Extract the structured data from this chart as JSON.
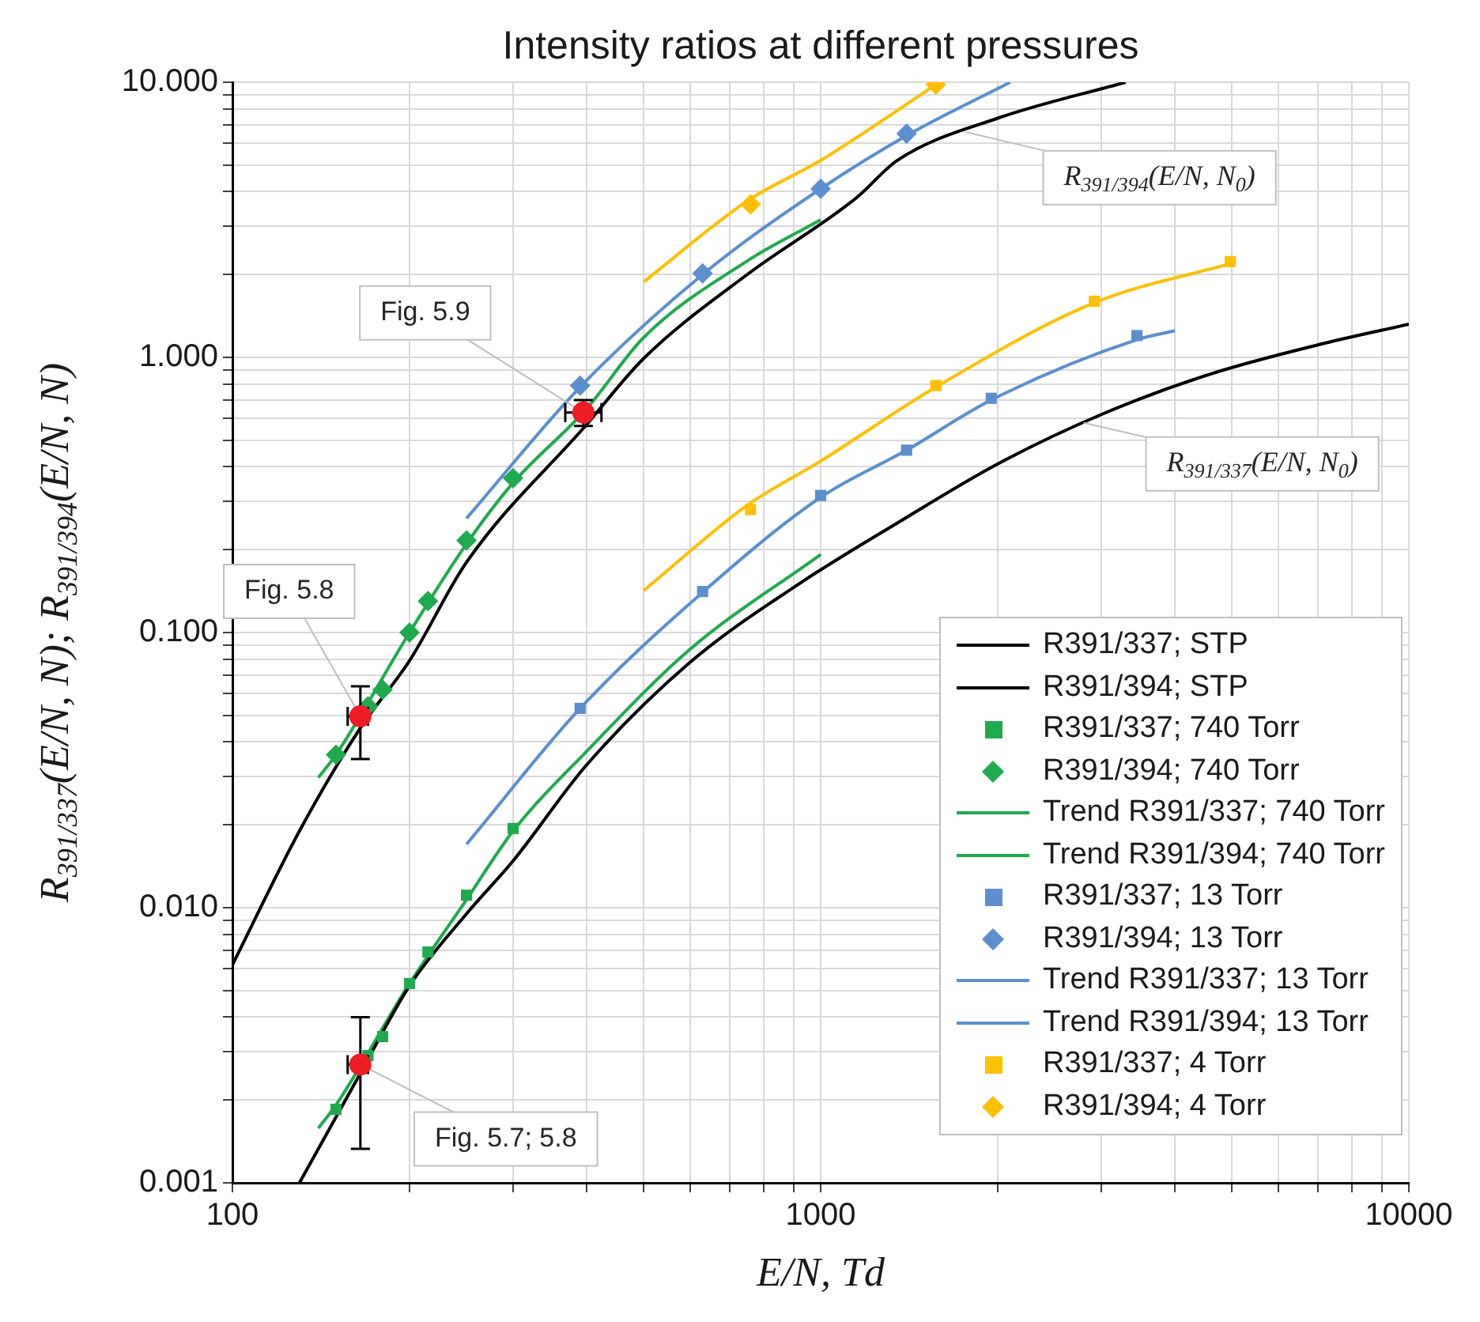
{
  "chart_data": {
    "type": "line",
    "title": "Intensity ratios at different pressures",
    "xlabel": "E/N, Td",
    "ylabel": "R$_{391/337}$(E/N, N); R$_{391/394}$(E/N, N)",
    "log": "xy",
    "grid": true,
    "legend": "bottom right",
    "xlim": [
      100,
      10000
    ],
    "xticks": [
      100,
      {
        "value": 200,
        "label": null
      },
      {
        "value": 300,
        "label": null
      },
      {
        "value": 400,
        "label": null
      },
      {
        "value": 500,
        "label": null
      },
      {
        "value": 600,
        "label": null
      },
      {
        "value": 700,
        "label": null
      },
      {
        "value": 800,
        "label": null
      },
      {
        "value": 900,
        "label": null
      },
      1000,
      {
        "value": 2000,
        "label": null
      },
      {
        "value": 3000,
        "label": null
      },
      {
        "value": 4000,
        "label": null
      },
      {
        "value": 5000,
        "label": null
      },
      {
        "value": 6000,
        "label": null
      },
      {
        "value": 7000,
        "label": null
      },
      {
        "value": 8000,
        "label": null
      },
      {
        "value": 9000,
        "label": null
      },
      10000
    ],
    "ylim": [
      0.001,
      10
    ],
    "yticks": [
      {
        "value": 0.001,
        "label": "0.001"
      },
      {
        "value": 0.002,
        "label": null
      },
      {
        "value": 0.003,
        "label": null
      },
      {
        "value": 0.004,
        "label": null
      },
      {
        "value": 0.005,
        "label": null
      },
      {
        "value": 0.006,
        "label": null
      },
      {
        "value": 0.007,
        "label": null
      },
      {
        "value": 0.008,
        "label": null
      },
      {
        "value": 0.009,
        "label": null
      },
      {
        "value": 0.01,
        "label": "0.010"
      },
      {
        "value": 0.02,
        "label": null
      },
      {
        "value": 0.03,
        "label": null
      },
      {
        "value": 0.04,
        "label": null
      },
      {
        "value": 0.05,
        "label": null
      },
      {
        "value": 0.06,
        "label": null
      },
      {
        "value": 0.07,
        "label": null
      },
      {
        "value": 0.08,
        "label": null
      },
      {
        "value": 0.09,
        "label": null
      },
      {
        "value": 0.1,
        "label": "0.100"
      },
      {
        "value": 0.2,
        "label": null
      },
      {
        "value": 0.3,
        "label": null
      },
      {
        "value": 0.4,
        "label": null
      },
      {
        "value": 0.5,
        "label": null
      },
      {
        "value": 0.6,
        "label": null
      },
      {
        "value": 0.7,
        "label": null
      },
      {
        "value": 0.8,
        "label": null
      },
      {
        "value": 0.9,
        "label": null
      },
      {
        "value": 1,
        "label": "1.000"
      },
      {
        "value": 2,
        "label": null
      },
      {
        "value": 3,
        "label": null
      },
      {
        "value": 4,
        "label": null
      },
      {
        "value": 5,
        "label": null
      },
      {
        "value": 6,
        "label": null
      },
      {
        "value": 7,
        "label": null
      },
      {
        "value": 8,
        "label": null
      },
      {
        "value": 9,
        "label": null
      },
      {
        "value": 10,
        "label": "10.000"
      }
    ],
    "series": [
      {
        "name": "R391/337; STP",
        "marker": "none",
        "color": "#000000",
        "x": [
          130,
          165,
          200,
          250,
          300,
          400,
          600,
          900,
          1350,
          2000,
          3000,
          4600,
          7000,
          10000
        ],
        "values": [
          0.001,
          0.0025,
          0.0052,
          0.0095,
          0.0148,
          0.033,
          0.078,
          0.146,
          0.25,
          0.41,
          0.62,
          0.87,
          1.11,
          1.32
        ]
      },
      {
        "name": "R391/394; STP",
        "marker": "none",
        "color": "#000000",
        "x": [
          100,
          130,
          165,
          200,
          250,
          400,
          500,
          750,
          1150,
          1350,
          2000,
          3300
        ],
        "values": [
          0.0062,
          0.019,
          0.045,
          0.079,
          0.18,
          0.57,
          0.99,
          2.0,
          3.8,
          5.2,
          7.4,
          10
        ]
      },
      {
        "name": "R391/337; 740 Torr",
        "type": "scatter",
        "marker": "square",
        "color": "#1faa4e",
        "x": [
          150,
          170,
          180,
          200,
          215,
          250,
          300
        ],
        "values": [
          0.00185,
          0.0029,
          0.0034,
          0.0053,
          0.0069,
          0.0111,
          0.0194
        ]
      },
      {
        "name": "R391/394; 740 Torr",
        "type": "scatter",
        "marker": "diamond",
        "color": "#1faa4e",
        "x": [
          150,
          170,
          180,
          200,
          215,
          250,
          300
        ],
        "values": [
          0.036,
          0.054,
          0.062,
          0.1,
          0.13,
          0.216,
          0.364
        ]
      },
      {
        "name": "Trend R391/337; 740 Torr",
        "marker": "none",
        "color": "#1faa4e",
        "x": [
          140,
          150,
          200,
          250,
          300,
          400,
          600,
          1000
        ],
        "values": [
          0.00158,
          0.00192,
          0.0053,
          0.0107,
          0.019,
          0.037,
          0.087,
          0.192
        ]
      },
      {
        "name": "Trend R391/394; 740 Torr",
        "marker": "none",
        "color": "#1faa4e",
        "x": [
          140,
          150,
          200,
          250,
          300,
          400,
          500,
          750,
          1000
        ],
        "values": [
          0.0297,
          0.036,
          0.1,
          0.21,
          0.35,
          0.65,
          1.18,
          2.24,
          3.16
        ]
      },
      {
        "name": "R391/337; 13 Torr",
        "type": "scatter",
        "marker": "square",
        "color": "#5b8fcf",
        "x": [
          390,
          630,
          1000,
          1400,
          1950,
          3450
        ],
        "values": [
          0.053,
          0.141,
          0.315,
          0.46,
          0.71,
          1.2
        ]
      },
      {
        "name": "R391/394; 13 Torr",
        "type": "scatter",
        "marker": "diamond",
        "color": "#5b8fcf",
        "x": [
          390,
          630,
          1000,
          1400
        ],
        "values": [
          0.79,
          2.02,
          4.1,
          6.5
        ]
      },
      {
        "name": "Trend R391/337; 13 Torr",
        "marker": "none",
        "color": "#5b8fcf",
        "x": [
          250,
          390,
          630,
          1000,
          1400,
          1950,
          3450,
          4000
        ],
        "values": [
          0.017,
          0.053,
          0.14,
          0.31,
          0.46,
          0.7,
          1.16,
          1.25
        ]
      },
      {
        "name": "Trend R391/394; 13 Torr",
        "marker": "none",
        "color": "#5b8fcf",
        "x": [
          250,
          390,
          630,
          1000,
          1400,
          2100
        ],
        "values": [
          0.26,
          0.78,
          2.0,
          4.1,
          6.4,
          10
        ]
      },
      {
        "name": "R391/337; 4 Torr",
        "type": "scatter",
        "marker": "square",
        "color": "#ffc000",
        "x": [
          760,
          1570,
          2920,
          4970
        ],
        "values": [
          0.28,
          0.79,
          1.6,
          2.23
        ]
      },
      {
        "name": "R391/394; 4 Torr",
        "type": "scatter",
        "marker": "diamond",
        "color": "#ffc000",
        "x": [
          760,
          1570
        ],
        "values": [
          3.6,
          9.8
        ]
      },
      {
        "marker": "none",
        "color": "#ffc000",
        "x": [
          500,
          750,
          1000,
          1570,
          2920,
          5000
        ],
        "values": [
          0.142,
          0.29,
          0.42,
          0.78,
          1.58,
          2.2
        ]
      },
      {
        "marker": "none",
        "color": "#ffc000",
        "x": [
          500,
          750,
          1000,
          1570
        ],
        "values": [
          1.88,
          3.7,
          5.2,
          9.8
        ]
      },
      {
        "type": "scatter",
        "marker": "circle",
        "color": "#ee1c25",
        "x": [
          165,
          165,
          395
        ],
        "values": [
          0.0496,
          0.00269,
          0.63
        ],
        "errors": [
          [
            0.0347,
            0.0638
          ],
          [
            0.00133,
            0.004
          ],
          [
            0.563,
            0.7
          ]
        ],
        "xerrors": [
          [
            157,
            170
          ],
          [
            157,
            170
          ],
          [
            368,
            424
          ]
        ]
      }
    ],
    "annotations": [
      {
        "text": "Fig. 5.8",
        "x": 165,
        "y": 0.0496
      },
      {
        "text": "Fig. 5.7; 5.8",
        "x": 165,
        "y": 0.00269
      },
      {
        "text": "Fig. 5.9",
        "x": 395,
        "y": 0.63
      },
      {
        "text": "R$_{391/394}$(E/N, N$_{0}$)",
        "x": 1760,
        "y": 6.6
      },
      {
        "text": "R$_{391/337}$(E/N, N$_{0}$)",
        "x": 2800,
        "y": 0.578
      }
    ]
  }
}
